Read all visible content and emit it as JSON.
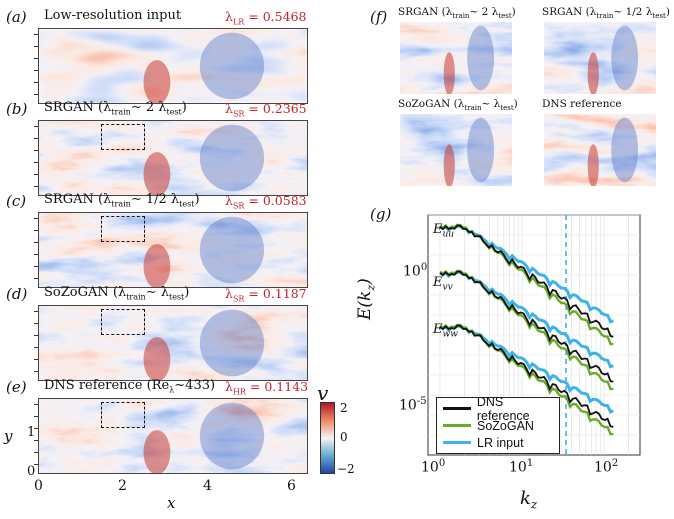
{
  "panels": [
    {
      "label": "(a)",
      "title": "Low-resolution input",
      "value_label": "λ",
      "value_sub": "LR",
      "value": "= 0.5468",
      "seed": 3,
      "blur": 6
    },
    {
      "label": "(b)",
      "title": "SRGAN (λ",
      "title_sub": "train",
      "title_rest": "∼ 2 λ",
      "title_sub2": "test",
      "title_end": ")",
      "value_label": "λ",
      "value_sub": "SR",
      "value": "= 0.2365",
      "seed": 7,
      "blur": 3
    },
    {
      "label": "(c)",
      "title": "SRGAN (λ",
      "title_sub": "train",
      "title_rest": "∼ 1/2 λ",
      "title_sub2": "test",
      "title_end": ")",
      "value_label": "λ",
      "value_sub": "SR",
      "value": "= 0.0583",
      "seed": 11,
      "blur": 1
    },
    {
      "label": "(d)",
      "title": "SoZoGAN (λ",
      "title_sub": "train",
      "title_rest": "∼ λ",
      "title_sub2": "test",
      "title_end": ")",
      "value_label": "λ",
      "value_sub": "SR",
      "value": "= 0.1187",
      "seed": 13,
      "blur": 2
    },
    {
      "label": "(e)",
      "title": "DNS reference (Re",
      "title_sub": "λ",
      "title_rest": "~433)",
      "title_sub2": "",
      "title_end": "",
      "value_label": "λ",
      "value_sub": "HR",
      "value": "= 0.1143",
      "seed": 17,
      "blur": 2
    }
  ],
  "axes_e": {
    "xlabel": "x",
    "ylabel": "y",
    "xticks": [
      "0",
      "2",
      "4",
      "6"
    ],
    "yticks": [
      "0",
      "1"
    ]
  },
  "colorbar": {
    "label": "v",
    "ticks": [
      "2",
      "0",
      "−2"
    ]
  },
  "panel_f": {
    "label": "(f)",
    "insets": [
      {
        "title": "SRGAN (λ",
        "sub": "train",
        "rest": "∼ 2 λ",
        "sub2": "test",
        "end": ")",
        "seed": 7,
        "blur": 3
      },
      {
        "title": "SRGAN (λ",
        "sub": "train",
        "rest": "∼ 1/2 λ",
        "sub2": "test",
        "end": ")",
        "seed": 11,
        "blur": 1
      },
      {
        "title": "SoZoGAN (λ",
        "sub": "train",
        "rest": "∼ λ",
        "sub2": "test",
        "end": ")",
        "seed": 13,
        "blur": 2
      },
      {
        "title": "DNS reference",
        "sub": "",
        "rest": "",
        "sub2": "",
        "end": "",
        "seed": 17,
        "blur": 2
      }
    ]
  },
  "panel_g": {
    "label": "(g)",
    "ylabel": "E(k",
    "ylabel_sub": "z",
    "ylabel_end": ")",
    "xlabel": "k",
    "xlabel_sub": "z",
    "curve_labels": [
      {
        "text": "E",
        "sub": "uu"
      },
      {
        "text": "E",
        "sub": "vv"
      },
      {
        "text": "E",
        "sub": "ww"
      }
    ],
    "yticks": [
      {
        "base": "10",
        "exp": "0"
      },
      {
        "base": "10",
        "exp": "-5"
      }
    ],
    "xticks": [
      {
        "base": "10",
        "exp": "0"
      },
      {
        "base": "10",
        "exp": "1"
      },
      {
        "base": "10",
        "exp": "2"
      }
    ],
    "legend": [
      {
        "name": "DNS reference",
        "color": "#111111"
      },
      {
        "name": "SoZoGAN",
        "color": "#6aaa2a"
      },
      {
        "name": "LR input",
        "color": "#3fb3e8"
      }
    ],
    "cutoff_color": "#3fb3e8"
  },
  "colors": {
    "red": "#c0262d"
  }
}
